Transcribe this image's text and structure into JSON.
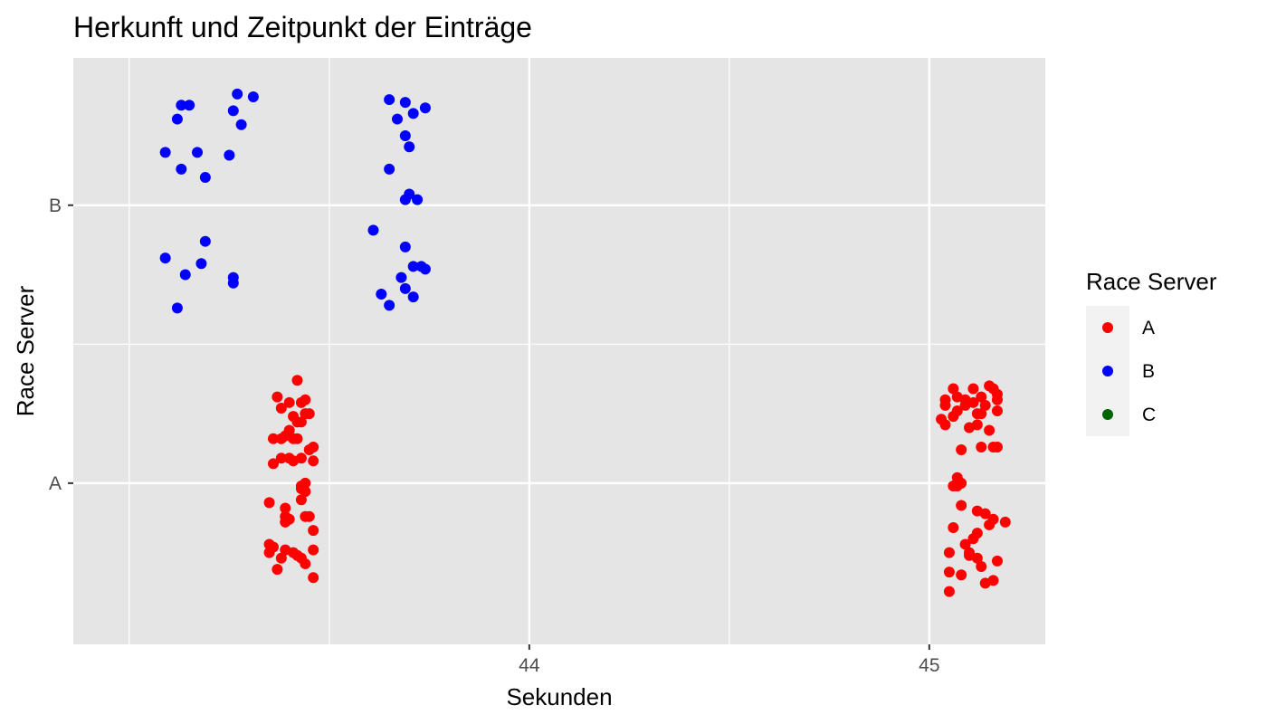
{
  "chart_data": {
    "type": "scatter",
    "title": "Herkunft und Zeitpunkt der Einträge",
    "xlabel": "Sekunden",
    "ylabel": "Race Server",
    "xlim": [
      42.86,
      45.29
    ],
    "ylim": [
      0.42,
      2.53
    ],
    "x_ticks": [
      44,
      45
    ],
    "x_tick_labels": [
      "44",
      "45"
    ],
    "x_minor_gridlines": [
      43.5,
      44.5
    ],
    "y_categories": [
      "A",
      "B"
    ],
    "grid": true,
    "legend": {
      "title": "Race Server",
      "position": "right",
      "entries": [
        {
          "label": "A",
          "color": "#ff0000"
        },
        {
          "label": "B",
          "color": "#0000ff"
        },
        {
          "label": "C",
          "color": "#006400"
        }
      ]
    },
    "series": [
      {
        "name": "A",
        "color": "#ff0000",
        "points": [
          [
            43.42,
            1.37
          ],
          [
            43.37,
            1.31
          ],
          [
            43.4,
            1.29
          ],
          [
            43.43,
            1.29
          ],
          [
            43.44,
            1.3
          ],
          [
            43.38,
            1.27
          ],
          [
            43.44,
            1.25
          ],
          [
            43.41,
            1.24
          ],
          [
            43.45,
            1.25
          ],
          [
            43.42,
            1.22
          ],
          [
            43.43,
            1.22
          ],
          [
            43.4,
            1.19
          ],
          [
            43.38,
            1.16
          ],
          [
            43.39,
            1.17
          ],
          [
            43.41,
            1.16
          ],
          [
            43.42,
            1.16
          ],
          [
            43.36,
            1.16
          ],
          [
            43.45,
            1.12
          ],
          [
            43.46,
            1.13
          ],
          [
            43.38,
            1.09
          ],
          [
            43.4,
            1.09
          ],
          [
            43.41,
            1.08
          ],
          [
            43.43,
            1.09
          ],
          [
            43.36,
            1.07
          ],
          [
            43.46,
            1.08
          ],
          [
            43.44,
            1.0
          ],
          [
            43.43,
            0.99
          ],
          [
            43.43,
            0.98
          ],
          [
            43.44,
            0.97
          ],
          [
            43.43,
            0.94
          ],
          [
            43.35,
            0.93
          ],
          [
            43.39,
            0.91
          ],
          [
            43.44,
            0.88
          ],
          [
            43.45,
            0.88
          ],
          [
            43.39,
            0.88
          ],
          [
            43.4,
            0.87
          ],
          [
            43.39,
            0.86
          ],
          [
            43.46,
            0.83
          ],
          [
            43.35,
            0.78
          ],
          [
            43.36,
            0.77
          ],
          [
            43.35,
            0.75
          ],
          [
            43.39,
            0.76
          ],
          [
            43.41,
            0.75
          ],
          [
            43.46,
            0.76
          ],
          [
            43.42,
            0.74
          ],
          [
            43.38,
            0.73
          ],
          [
            43.43,
            0.73
          ],
          [
            43.37,
            0.69
          ],
          [
            43.44,
            0.71
          ],
          [
            43.46,
            0.66
          ],
          [
            45.06,
            1.34
          ],
          [
            45.11,
            1.34
          ],
          [
            45.15,
            1.35
          ],
          [
            45.16,
            1.34
          ],
          [
            45.07,
            1.31
          ],
          [
            45.04,
            1.3
          ],
          [
            45.09,
            1.3
          ],
          [
            45.11,
            1.29
          ],
          [
            45.13,
            1.31
          ],
          [
            45.17,
            1.32
          ],
          [
            45.17,
            1.3
          ],
          [
            45.04,
            1.28
          ],
          [
            45.09,
            1.28
          ],
          [
            45.14,
            1.28
          ],
          [
            45.07,
            1.26
          ],
          [
            45.12,
            1.25
          ],
          [
            45.13,
            1.25
          ],
          [
            45.17,
            1.26
          ],
          [
            45.03,
            1.23
          ],
          [
            45.06,
            1.24
          ],
          [
            45.04,
            1.21
          ],
          [
            45.12,
            1.21
          ],
          [
            45.1,
            1.2
          ],
          [
            45.15,
            1.19
          ],
          [
            45.17,
            1.13
          ],
          [
            45.13,
            1.13
          ],
          [
            45.16,
            1.13
          ],
          [
            45.08,
            1.12
          ],
          [
            45.07,
            1.02
          ],
          [
            45.08,
            1.0
          ],
          [
            45.06,
            0.99
          ],
          [
            45.07,
            0.99
          ],
          [
            45.08,
            0.92
          ],
          [
            45.12,
            0.9
          ],
          [
            45.14,
            0.89
          ],
          [
            45.16,
            0.87
          ],
          [
            45.19,
            0.86
          ],
          [
            45.15,
            0.85
          ],
          [
            45.12,
            0.82
          ],
          [
            45.06,
            0.84
          ],
          [
            45.11,
            0.8
          ],
          [
            45.09,
            0.78
          ],
          [
            45.1,
            0.75
          ],
          [
            45.1,
            0.74
          ],
          [
            45.05,
            0.75
          ],
          [
            45.12,
            0.73
          ],
          [
            45.17,
            0.72
          ],
          [
            45.13,
            0.7
          ],
          [
            45.05,
            0.68
          ],
          [
            45.08,
            0.67
          ],
          [
            45.14,
            0.64
          ],
          [
            45.16,
            0.65
          ],
          [
            45.05,
            0.61
          ]
        ]
      },
      {
        "name": "B",
        "color": "#0000ff",
        "points": [
          [
            43.27,
            2.4
          ],
          [
            43.31,
            2.39
          ],
          [
            43.15,
            2.36
          ],
          [
            43.13,
            2.36
          ],
          [
            43.26,
            2.34
          ],
          [
            43.12,
            2.31
          ],
          [
            43.28,
            2.29
          ],
          [
            43.09,
            2.19
          ],
          [
            43.17,
            2.19
          ],
          [
            43.25,
            2.18
          ],
          [
            43.13,
            2.13
          ],
          [
            43.19,
            2.1
          ],
          [
            43.19,
            1.87
          ],
          [
            43.09,
            1.81
          ],
          [
            43.18,
            1.79
          ],
          [
            43.14,
            1.75
          ],
          [
            43.26,
            1.72
          ],
          [
            43.26,
            1.74
          ],
          [
            43.12,
            1.63
          ],
          [
            43.65,
            2.38
          ],
          [
            43.69,
            2.37
          ],
          [
            43.74,
            2.35
          ],
          [
            43.71,
            2.33
          ],
          [
            43.67,
            2.31
          ],
          [
            43.69,
            2.25
          ],
          [
            43.7,
            2.21
          ],
          [
            43.65,
            2.13
          ],
          [
            43.7,
            2.04
          ],
          [
            43.69,
            2.02
          ],
          [
            43.72,
            2.02
          ],
          [
            43.61,
            1.91
          ],
          [
            43.69,
            1.85
          ],
          [
            43.73,
            1.78
          ],
          [
            43.71,
            1.78
          ],
          [
            43.74,
            1.77
          ],
          [
            43.68,
            1.74
          ],
          [
            43.69,
            1.7
          ],
          [
            43.63,
            1.68
          ],
          [
            43.71,
            1.67
          ],
          [
            43.65,
            1.64
          ]
        ]
      }
    ]
  }
}
